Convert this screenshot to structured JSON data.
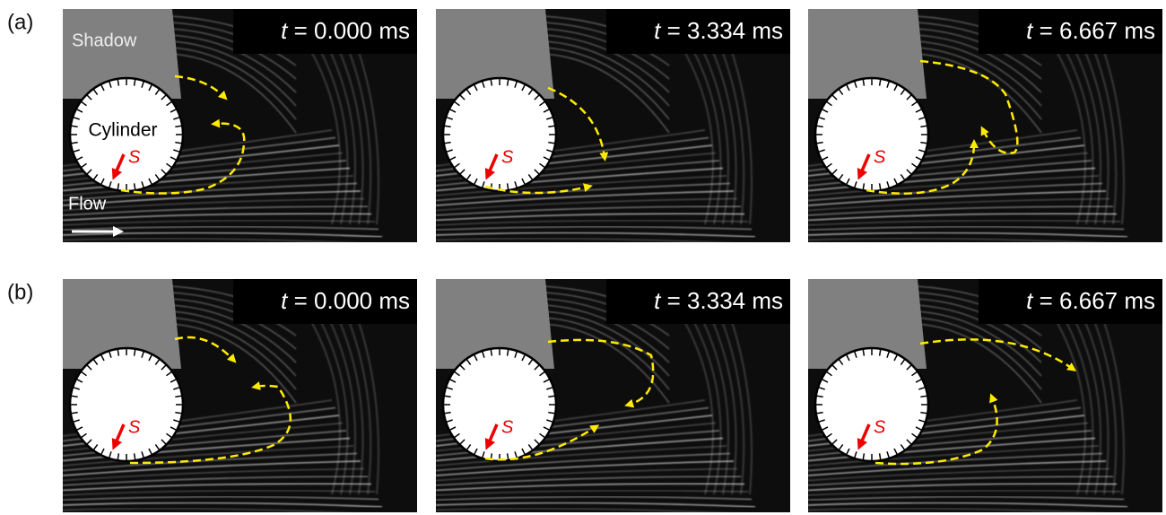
{
  "rows": [
    {
      "label": "(a)",
      "panels": [
        {
          "time": {
            "var": "t",
            "rest": "= 0.000 ms"
          },
          "marker": "S"
        },
        {
          "time": {
            "var": "t",
            "rest": "= 3.334 ms"
          },
          "marker": "S"
        },
        {
          "time": {
            "var": "t",
            "rest": "= 6.667 ms"
          },
          "marker": "S"
        }
      ]
    },
    {
      "label": "(b)",
      "panels": [
        {
          "time": {
            "var": "t",
            "rest": "= 0.000 ms"
          },
          "marker": "S"
        },
        {
          "time": {
            "var": "t",
            "rest": "= 3.334 ms"
          },
          "marker": "S"
        },
        {
          "time": {
            "var": "t",
            "rest": "= 6.667 ms"
          },
          "marker": "S"
        }
      ]
    }
  ],
  "annotations": {
    "shadow": "Shadow",
    "cylinder": "Cylinder",
    "flow": "Flow"
  }
}
